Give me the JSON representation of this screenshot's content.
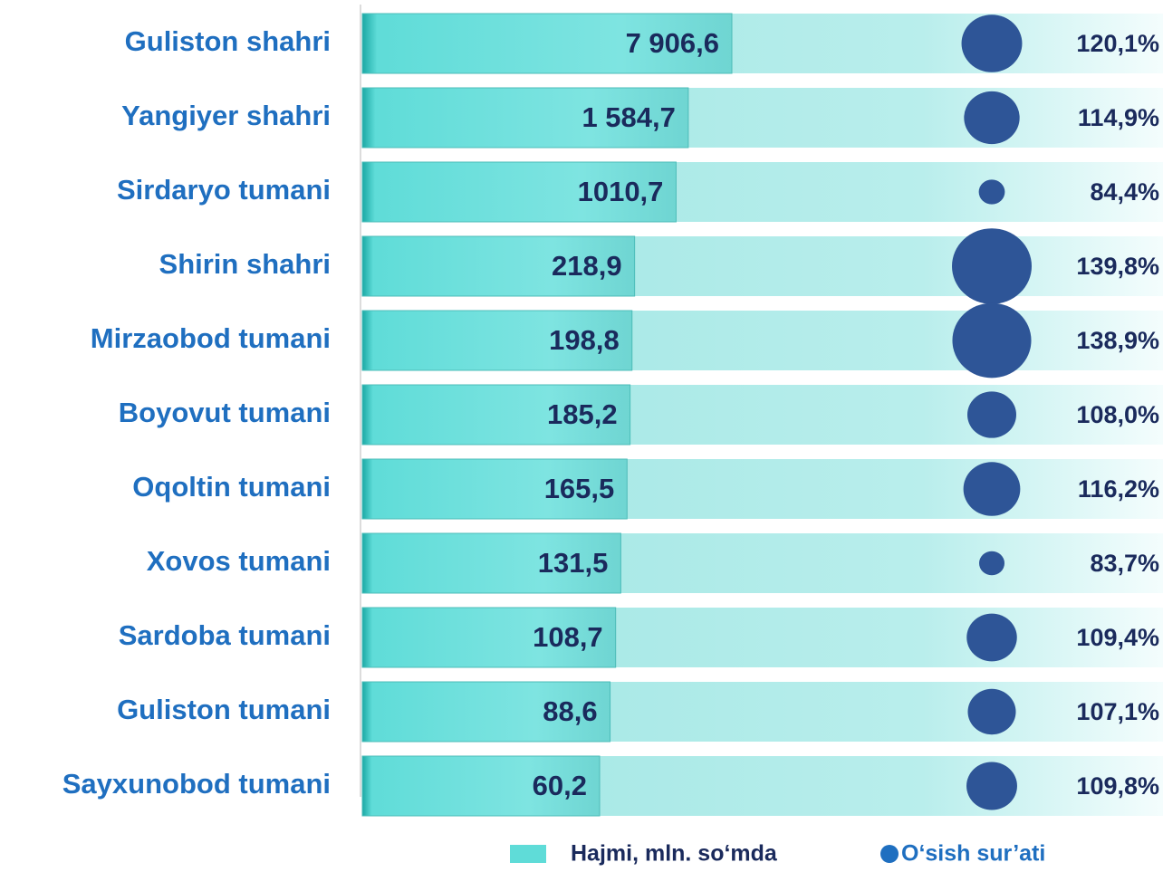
{
  "chart_data": {
    "type": "bar_bubble",
    "categories": [
      "Guliston shahri",
      "Yangiyer shahri",
      "Sirdaryo tumani",
      "Shirin shahri",
      "Mirzaobod tumani",
      "Boyovut tumani",
      "Oqoltin tumani",
      "Xovos tumani",
      "Sardoba tumani",
      "Guliston tumani",
      "Sayxunobod tumani"
    ],
    "x_scale": "log",
    "series": [
      {
        "name": "Hajmi, mln. so‘mda",
        "color": "#5fdcd8",
        "values": [
          7906.6,
          1584.7,
          1010.7,
          218.9,
          198.8,
          185.2,
          165.5,
          131.5,
          108.7,
          88.6,
          60.2
        ],
        "value_labels": [
          "7 906,6",
          "1 584,7",
          "1010,7",
          "218,9",
          "198,8",
          "185,2",
          "165,5",
          "131,5",
          "108,7",
          "88,6",
          "60,2"
        ]
      },
      {
        "name": "O‘sish sur’ati",
        "color": "#2e5597",
        "values": [
          120.1,
          114.9,
          84.4,
          139.8,
          138.9,
          108.0,
          116.2,
          83.7,
          109.4,
          107.1,
          109.8
        ],
        "value_labels": [
          "120,1%",
          "114,9%",
          "84,4%",
          "139,8%",
          "138,9%",
          "108,0%",
          "116,2%",
          "83,7%",
          "109,4%",
          "107,1%",
          "109,8%"
        ]
      }
    ]
  }
}
